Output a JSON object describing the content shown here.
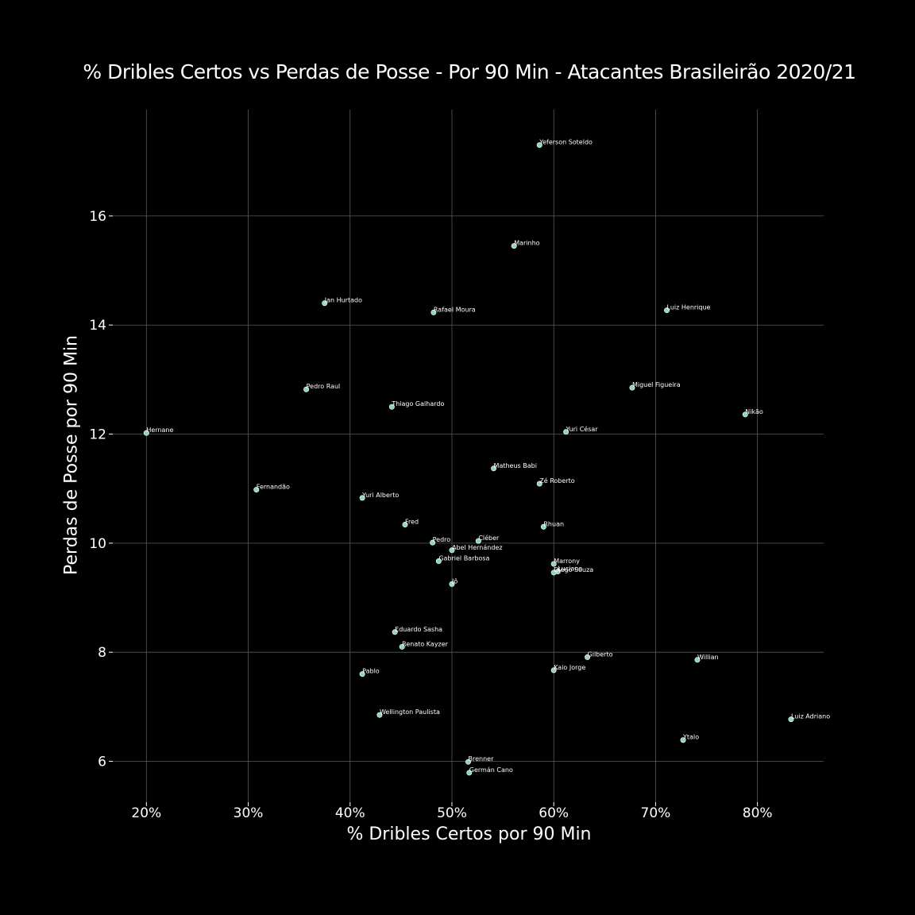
{
  "chart_data": {
    "type": "scatter",
    "title": "% Dribles Certos vs Perdas de Posse - Por 90 Min - Atacantes Brasileirão 2020/21",
    "xlabel": "% Dribles Certos por 90 Min",
    "ylabel": "Perdas de Posse por 90 Min",
    "xlim": [
      16.7,
      86.5
    ],
    "ylim": [
      5.25,
      17.95
    ],
    "x_ticks": [
      20,
      30,
      40,
      50,
      60,
      70,
      80
    ],
    "x_tick_labels": [
      "20%",
      "30%",
      "40%",
      "50%",
      "60%",
      "70%",
      "80%"
    ],
    "y_ticks": [
      6,
      8,
      10,
      12,
      14,
      16
    ],
    "y_tick_labels": [
      "6",
      "8",
      "10",
      "12",
      "14",
      "16"
    ],
    "grid": true,
    "point_color": "#8ed3c7",
    "background": "#000000",
    "points": [
      {
        "name": "Yeferson Soteldo",
        "x": 58.6,
        "y": 17.3
      },
      {
        "name": "Marinho",
        "x": 56.1,
        "y": 15.45
      },
      {
        "name": "Jan Hurtado",
        "x": 37.5,
        "y": 14.4
      },
      {
        "name": "Rafael Moura",
        "x": 48.2,
        "y": 14.23
      },
      {
        "name": "Luiz Henrique",
        "x": 71.1,
        "y": 14.27
      },
      {
        "name": "Pedro Raul",
        "x": 35.7,
        "y": 12.82
      },
      {
        "name": "Miguel Figueira",
        "x": 67.7,
        "y": 12.85
      },
      {
        "name": "Thiago Galhardo",
        "x": 44.1,
        "y": 12.5
      },
      {
        "name": "Nikão",
        "x": 78.8,
        "y": 12.36
      },
      {
        "name": "Hernane",
        "x": 20.0,
        "y": 12.02
      },
      {
        "name": "Yuri César",
        "x": 61.2,
        "y": 12.04
      },
      {
        "name": "Matheus Babi",
        "x": 54.1,
        "y": 11.37
      },
      {
        "name": "Zé Roberto",
        "x": 58.6,
        "y": 11.09
      },
      {
        "name": "Fernandão",
        "x": 30.8,
        "y": 10.98
      },
      {
        "name": "Yuri Alberto",
        "x": 41.2,
        "y": 10.83
      },
      {
        "name": "Fred",
        "x": 45.4,
        "y": 10.34
      },
      {
        "name": "Rhuan",
        "x": 59.0,
        "y": 10.3
      },
      {
        "name": "Pedro",
        "x": 48.1,
        "y": 10.01
      },
      {
        "name": "Cléber",
        "x": 52.6,
        "y": 10.04
      },
      {
        "name": "Abel Hernández",
        "x": 50.0,
        "y": 9.87
      },
      {
        "name": "Gabriel Barbosa",
        "x": 48.7,
        "y": 9.67
      },
      {
        "name": "Marrony",
        "x": 60.0,
        "y": 9.62
      },
      {
        "name": "Luciano",
        "x": 60.4,
        "y": 9.48
      },
      {
        "name": "Diego Souza",
        "x": 60.0,
        "y": 9.46
      },
      {
        "name": "Jô",
        "x": 50.0,
        "y": 9.25
      },
      {
        "name": "Eduardo Sasha",
        "x": 44.4,
        "y": 8.37
      },
      {
        "name": "Renato Kayzer",
        "x": 45.1,
        "y": 8.1
      },
      {
        "name": "Gilberto",
        "x": 63.3,
        "y": 7.91
      },
      {
        "name": "Willian",
        "x": 74.1,
        "y": 7.86
      },
      {
        "name": "Kaio Jorge",
        "x": 60.0,
        "y": 7.67
      },
      {
        "name": "Pablo",
        "x": 41.2,
        "y": 7.6
      },
      {
        "name": "Wellington Paulista",
        "x": 42.9,
        "y": 6.85
      },
      {
        "name": "Luiz Adriano",
        "x": 83.3,
        "y": 6.77
      },
      {
        "name": "Ytalo",
        "x": 72.7,
        "y": 6.39
      },
      {
        "name": "Brenner",
        "x": 51.6,
        "y": 5.99
      },
      {
        "name": "Germán Cano",
        "x": 51.7,
        "y": 5.79
      }
    ]
  }
}
